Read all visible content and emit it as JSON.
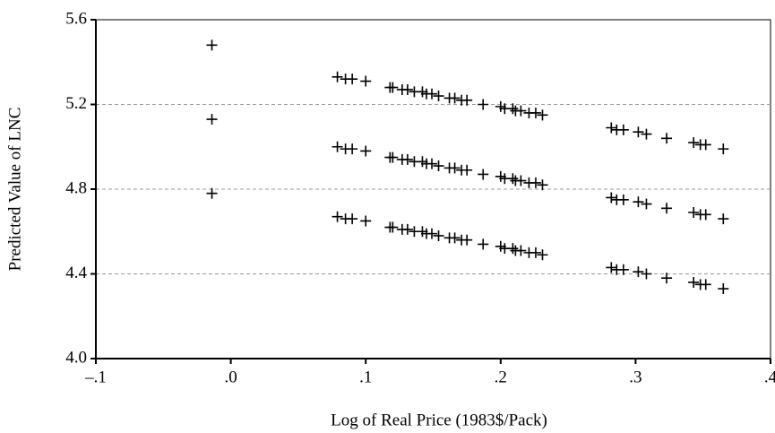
{
  "chart_data": {
    "type": "scatter",
    "xlabel": "Log of Real Price (1983$/Pack)",
    "ylabel": "Predicted Value of LNC",
    "x": [
      -0.014,
      0.079,
      0.085,
      0.09,
      0.1,
      0.118,
      0.12,
      0.127,
      0.131,
      0.136,
      0.142,
      0.145,
      0.149,
      0.154,
      0.162,
      0.166,
      0.171,
      0.175,
      0.187,
      0.2,
      0.203,
      0.209,
      0.211,
      0.215,
      0.221,
      0.226,
      0.231,
      0.282,
      0.286,
      0.291,
      0.302,
      0.308,
      0.323,
      0.343,
      0.348,
      0.352,
      0.365
    ],
    "series": [
      {
        "color": "#000000",
        "values": [
          5.48,
          5.33,
          5.32,
          5.32,
          5.31,
          5.28,
          5.28,
          5.27,
          5.27,
          5.26,
          5.26,
          5.25,
          5.25,
          5.24,
          5.23,
          5.23,
          5.22,
          5.22,
          5.2,
          5.19,
          5.18,
          5.18,
          5.17,
          5.17,
          5.16,
          5.16,
          5.15,
          5.09,
          5.08,
          5.08,
          5.07,
          5.06,
          5.04,
          5.02,
          5.01,
          5.01,
          4.99
        ]
      },
      {
        "color": "#000000",
        "values": [
          5.13,
          5.0,
          4.99,
          4.99,
          4.98,
          4.95,
          4.95,
          4.94,
          4.94,
          4.93,
          4.93,
          4.92,
          4.92,
          4.91,
          4.9,
          4.9,
          4.89,
          4.89,
          4.87,
          4.86,
          4.85,
          4.85,
          4.84,
          4.84,
          4.83,
          4.83,
          4.82,
          4.76,
          4.75,
          4.75,
          4.74,
          4.73,
          4.71,
          4.69,
          4.68,
          4.68,
          4.66
        ]
      },
      {
        "color": "#000000",
        "values": [
          4.78,
          4.67,
          4.66,
          4.66,
          4.65,
          4.62,
          4.62,
          4.61,
          4.61,
          4.6,
          4.6,
          4.59,
          4.59,
          4.58,
          4.57,
          4.57,
          4.56,
          4.56,
          4.54,
          4.53,
          4.52,
          4.52,
          4.51,
          4.51,
          4.5,
          4.5,
          4.49,
          4.43,
          4.42,
          4.42,
          4.41,
          4.4,
          4.38,
          4.36,
          4.35,
          4.35,
          4.33
        ]
      }
    ],
    "xlim": [
      -0.1,
      0.4
    ],
    "xticks": [
      {
        "value": -0.1,
        "label": "–.1"
      },
      {
        "value": 0,
        "label": ".0"
      },
      {
        "value": 0.1,
        "label": ".1"
      },
      {
        "value": 0.2,
        "label": ".2"
      },
      {
        "value": 0.3,
        "label": ".3"
      },
      {
        "value": 0.4,
        "label": ".4"
      }
    ],
    "ylim": [
      4.0,
      5.6
    ],
    "yticks": [
      {
        "value": 4.0,
        "label": "4.0"
      },
      4.4,
      4.8,
      5.2,
      5.6
    ],
    "grid": true
  }
}
